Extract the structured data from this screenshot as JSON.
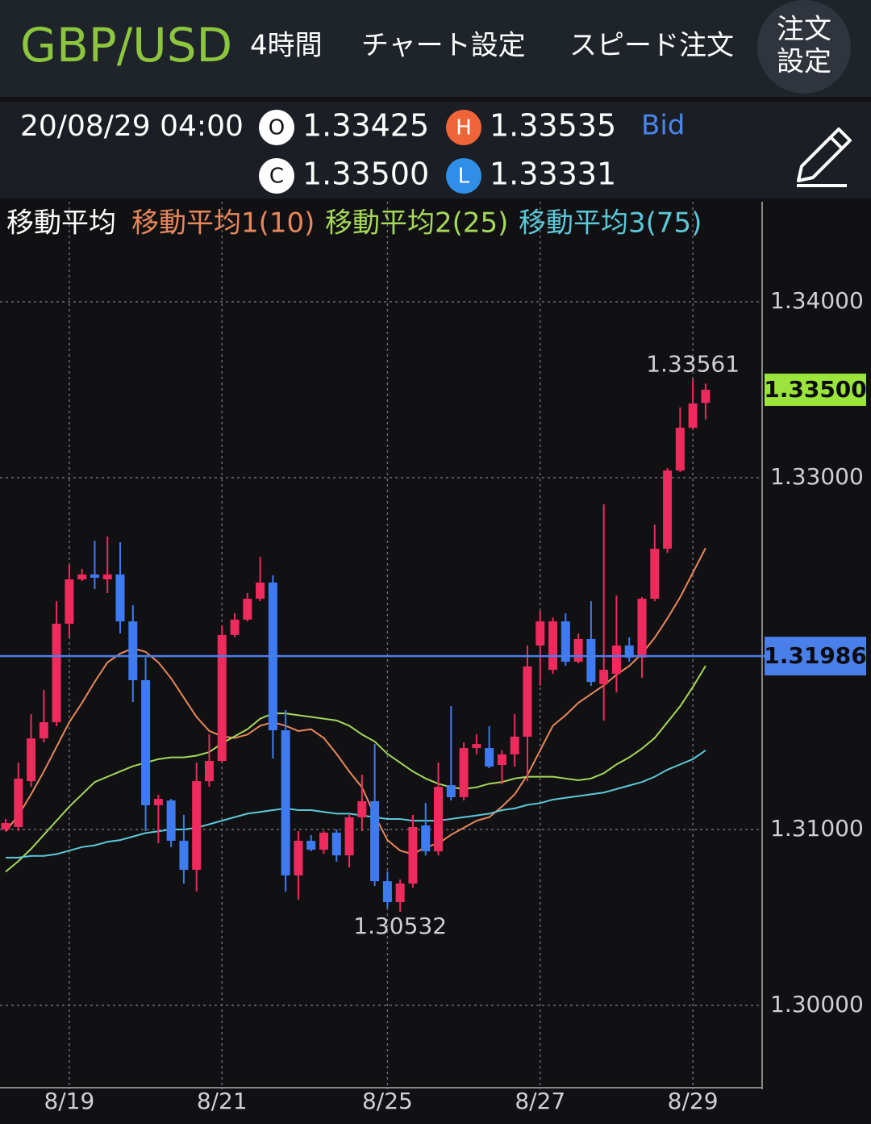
{
  "header": {
    "symbol": "GBP/USD",
    "timeframe": "4時間",
    "chart_settings": "チャート設定",
    "speed_order": "スピード注文",
    "order_settings": [
      "注文",
      "設定"
    ]
  },
  "quote": {
    "time": "20/08/29 04:00",
    "open_label": "O",
    "open": "1.33425",
    "high_label": "H",
    "high": "1.33535",
    "bid": "Bid",
    "close_label": "C",
    "close": "1.33500",
    "low_label": "L",
    "low": "1.33331"
  },
  "chart_data": {
    "type": "candlestick",
    "legend_title": "移動平均",
    "categories": [
      null,
      null,
      null,
      null,
      null,
      "8/19",
      null,
      null,
      null,
      null,
      null,
      null,
      null,
      null,
      null,
      null,
      null,
      "8/21",
      null,
      null,
      null,
      null,
      null,
      null,
      null,
      null,
      null,
      null,
      null,
      null,
      "8/25",
      null,
      null,
      null,
      null,
      null,
      null,
      null,
      null,
      null,
      null,
      null,
      "8/27",
      null,
      null,
      null,
      null,
      null,
      null,
      null,
      null,
      null,
      null,
      null,
      "8/29",
      null
    ],
    "open": [
      1.31,
      1.31014,
      1.31275,
      1.31518,
      1.3161,
      1.3217,
      1.32422,
      1.3245,
      1.32422,
      1.3245,
      1.32183,
      1.31849,
      1.31138,
      1.31165,
      1.30936,
      1.30771,
      1.31275,
      1.3139,
      1.32106,
      1.32193,
      1.32312,
      1.32404,
      1.31564,
      1.30739,
      1.30936,
      1.30885,
      1.30982,
      1.30853,
      1.31069,
      1.31161,
      1.30706,
      1.30587,
      1.30693,
      1.31023,
      1.30876,
      1.31252,
      1.31184,
      1.31463,
      1.31463,
      1.31367,
      1.31427,
      1.31528,
      1.32046,
      1.31908,
      1.32183,
      1.31954,
      1.32083,
      1.31826,
      1.31885,
      1.32046,
      1.31977,
      1.32312,
      1.32596,
      1.33041,
      1.33284,
      1.33425
    ],
    "high": [
      1.3106,
      1.31381,
      1.31656,
      1.31794,
      1.32298,
      1.32505,
      1.32482,
      1.32642,
      1.32665,
      1.32633,
      1.32275,
      1.31977,
      1.31197,
      1.31174,
      1.31083,
      1.31381,
      1.31541,
      1.32161,
      1.32229,
      1.32344,
      1.3255,
      1.32445,
      1.31679,
      1.30991,
      1.30968,
      1.30991,
      1.31,
      1.31083,
      1.31312,
      1.31486,
      1.30762,
      1.30716,
      1.31083,
      1.31151,
      1.31381,
      1.31702,
      1.31495,
      1.31541,
      1.31587,
      1.3145,
      1.31656,
      1.32046,
      1.32243,
      1.32206,
      1.32229,
      1.32115,
      1.32298,
      1.32849,
      1.3233,
      1.32092,
      1.32321,
      1.32734,
      1.33055,
      1.33399,
      1.33561,
      1.33535
    ],
    "low": [
      1.30991,
      1.30991,
      1.31243,
      1.31495,
      1.31587,
      1.32092,
      1.32413,
      1.32367,
      1.32344,
      1.32115,
      1.31725,
      1.30991,
      1.30922,
      1.30899,
      1.30693,
      1.30647,
      1.31243,
      1.31381,
      1.32092,
      1.32183,
      1.32298,
      1.31404,
      1.30647,
      1.30601,
      1.30876,
      1.30862,
      1.30817,
      1.30784,
      1.30991,
      1.30679,
      1.30555,
      1.30532,
      1.3067,
      1.30853,
      1.30853,
      1.31165,
      1.31165,
      1.31427,
      1.31349,
      1.31257,
      1.31358,
      1.31275,
      1.31817,
      1.31885,
      1.31931,
      1.31945,
      1.31817,
      1.31619,
      1.3178,
      1.31954,
      1.31862,
      1.32298,
      1.32573,
      1.33032,
      1.33275,
      1.33331
    ],
    "close": [
      1.31037,
      1.31289,
      1.31518,
      1.3161,
      1.3217,
      1.32422,
      1.3245,
      1.32431,
      1.3245,
      1.32183,
      1.31849,
      1.31138,
      1.31174,
      1.30936,
      1.30771,
      1.31275,
      1.3139,
      1.32106,
      1.32193,
      1.32312,
      1.32404,
      1.31564,
      1.30739,
      1.30936,
      1.30885,
      1.30982,
      1.30853,
      1.31069,
      1.31161,
      1.30706,
      1.30587,
      1.30693,
      1.31014,
      1.30876,
      1.31243,
      1.31184,
      1.31463,
      1.31486,
      1.31358,
      1.31427,
      1.31528,
      1.31927,
      1.32183,
      1.32183,
      1.31954,
      1.32083,
      1.31839,
      1.31908,
      1.32046,
      1.31977,
      1.32312,
      1.32596,
      1.33041,
      1.33284,
      1.33422,
      1.335
    ],
    "up_color": "#ef2a5c",
    "down_color": "#3f7bf0",
    "series": [
      {
        "name": "移動平均1(10)",
        "color": "#e8875a",
        "values": [
          1.3099,
          1.3108,
          1.312,
          1.3133,
          1.3147,
          1.3161,
          1.3172,
          1.3184,
          1.3195,
          1.32,
          1.3203,
          1.3201,
          1.3195,
          1.3186,
          1.3175,
          1.3164,
          1.3156,
          1.3153,
          1.3152,
          1.3154,
          1.3159,
          1.3161,
          1.3159,
          1.3156,
          1.3157,
          1.3152,
          1.3143,
          1.3133,
          1.3124,
          1.3108,
          1.3094,
          1.3088,
          1.3086,
          1.309,
          1.3092,
          1.3097,
          1.3101,
          1.3105,
          1.3107,
          1.3113,
          1.312,
          1.3131,
          1.3145,
          1.3159,
          1.3165,
          1.3172,
          1.3177,
          1.3182,
          1.3188,
          1.3193,
          1.32,
          1.3209,
          1.322,
          1.3232,
          1.3246,
          1.326
        ]
      },
      {
        "name": "移動平均2(25)",
        "color": "#a6d85a",
        "values": [
          1.3076,
          1.3082,
          1.3089,
          1.3097,
          1.3105,
          1.3113,
          1.312,
          1.3127,
          1.313,
          1.3133,
          1.3136,
          1.3138,
          1.314,
          1.3141,
          1.3141,
          1.3142,
          1.3144,
          1.3149,
          1.3153,
          1.3157,
          1.3163,
          1.3166,
          1.3166,
          1.3165,
          1.3164,
          1.3163,
          1.3162,
          1.3159,
          1.3154,
          1.315,
          1.3143,
          1.3138,
          1.3133,
          1.3129,
          1.3126,
          1.3124,
          1.3123,
          1.3124,
          1.3126,
          1.3127,
          1.3129,
          1.313,
          1.313,
          1.313,
          1.3129,
          1.3128,
          1.3129,
          1.3132,
          1.3137,
          1.3141,
          1.3146,
          1.3152,
          1.3161,
          1.317,
          1.3181,
          1.3193
        ]
      },
      {
        "name": "移動平均3(75)",
        "color": "#5cc8d8",
        "values": [
          1.3084,
          1.3084,
          1.3085,
          1.3085,
          1.3086,
          1.3088,
          1.309,
          1.3091,
          1.3093,
          1.3094,
          1.3096,
          1.3098,
          1.3099,
          1.31,
          1.31,
          1.3101,
          1.3103,
          1.3105,
          1.3107,
          1.3109,
          1.311,
          1.3111,
          1.3112,
          1.3111,
          1.3111,
          1.311,
          1.3109,
          1.3109,
          1.3108,
          1.3107,
          1.3106,
          1.3106,
          1.3105,
          1.3105,
          1.3105,
          1.3106,
          1.3107,
          1.3108,
          1.3109,
          1.3111,
          1.3112,
          1.3114,
          1.3115,
          1.3117,
          1.3118,
          1.3119,
          1.312,
          1.3121,
          1.3123,
          1.3125,
          1.3127,
          1.313,
          1.3134,
          1.3137,
          1.314,
          1.3145
        ]
      }
    ],
    "price_line": 1.31986,
    "price_line_color": "#4a7ee8",
    "last_price_color": "#9be43c",
    "ylim": [
      1.29523,
      1.34569
    ],
    "yticks": [
      {
        "value": 1.34,
        "label": "1.34000"
      },
      {
        "value": 1.33,
        "label": "1.33000"
      },
      {
        "value": 1.31,
        "label": "1.31000"
      },
      {
        "value": 1.3,
        "label": "1.30000"
      }
    ],
    "grid": true
  }
}
